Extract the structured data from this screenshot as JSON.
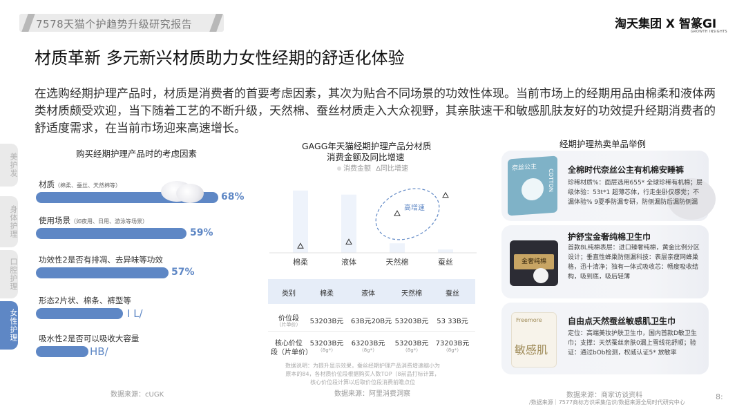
{
  "header": {
    "report_title": "7578天猫个护趋势升级研究报告",
    "brand_logo": "淘天集团 X 智篆GI",
    "brand_logo_sub": "GROWTH INSIGHTS"
  },
  "page": {
    "title": "材质革新 多元新兴材质助力女性经期的舒适化体验",
    "intro": "在选购经期护理产品时，材质是消费者的首要考虑因素，其次为贴合不同场景的功效性体现。当前市场上的经期用品由棉柔和液体两类材质颇受欢迎，当下随着工艺的不断升级，天然棉、蚕丝材质走入大众视野，其亲肤速干和敏感肌肤友好的功效提升经期消费者的舒适度需求，在当前市场迎来高速增长。",
    "page_number": "8:"
  },
  "side_tabs": [
    {
      "label": "美护发",
      "active": false
    },
    {
      "label": "身体护理",
      "active": false
    },
    {
      "label": "口腔护理",
      "active": false
    },
    {
      "label": "女性护理",
      "active": true
    }
  ],
  "colors": {
    "accent": "#5e87c5",
    "light_accent": "#e6edf8"
  },
  "factors": {
    "title": "购买经期护理产品时的考虑因素",
    "source": "数据来源：cUGK",
    "items": [
      {
        "label": "材质",
        "sub": "（棉柔、蚕丝、天然棉等）",
        "value": "68%",
        "fraction": 0.68
      },
      {
        "label": "使用场景",
        "sub": "（如夜用、日用、游泳等场景）",
        "value": "59%",
        "fraction": 0.59
      },
      {
        "label": "功效性2是否有排凋、去异味等功效",
        "sub": "",
        "value": "57%",
        "fraction": 0.57
      },
      {
        "label": "形态2片状、棉条、裤型等",
        "sub": "",
        "value": "I L/",
        "fraction": 0.29
      },
      {
        "label": "吸水性2是否可以吸收大容量",
        "sub": "",
        "value": "HB/",
        "fraction": 0.26
      }
    ]
  },
  "chart_data": {
    "type": "bar",
    "title": "GAGG年天猫经期护理产品分材质",
    "subtitle": "消费金额及同比增速",
    "legend": [
      "消费金额",
      "同比增速"
    ],
    "legend_symbol": "Δ",
    "categories": [
      "棉柔",
      "液体",
      "天然棉",
      "蚕丝"
    ],
    "series": [
      {
        "name": "消费金额",
        "values": [
          92,
          86,
          14,
          5
        ]
      },
      {
        "name": "同比增速",
        "values": [
          10,
          16,
          58,
          85
        ]
      }
    ],
    "ylim": [
      0,
      100
    ],
    "annotation": "高增速"
  },
  "price_table": {
    "headers": [
      "类别",
      "棉柔",
      "液体",
      "天然棉",
      "蚕丝"
    ],
    "rows": [
      {
        "label": "价位段",
        "label_sub": "（片单价）",
        "cells": [
          "53203B元",
          "63B元20B元",
          "53203B元",
          "53 33B元"
        ],
        "subs": [
          "",
          "",
          "",
          ""
        ]
      },
      {
        "label": "核心价位",
        "label2": "段（片单价）",
        "cells": [
          "53203B元",
          "63203B元",
          "53203B元",
          "73203B元"
        ],
        "subs": [
          "（8g*）",
          "（8g*）",
          "（8g*）",
          "（8g*）"
        ]
      }
    ],
    "note": "数据说明：为提升显示效果，蚕丝经期护理产品消费增速缩小为原本的84，各材质价位段根据购买人数TOP（8前品打标计算，核心价位段计算以后取价位段消费前瞻点位",
    "source": "数据来源：阿里消费洞察"
  },
  "products": {
    "title": "经期护理热卖单品举例",
    "items": [
      {
        "name": "全棉时代奈丝公主有机棉安睡裤",
        "desc": "珍稀材质%：面层选用655* 全球珍稀有机棉；层级体验：53t*1 超薄芯体，行走坐卧仅感觉；不漏体验% 9夏季防漏专研，防侧漏防后漏防侧漏",
        "pack_top": "奈丝公主",
        "pack_side": "COTTON"
      },
      {
        "name": "护舒宝金奢纯棉卫生巾",
        "desc": "首款8L纯棉表层：进口臻奢纯棉，黄金比例分区设计；垂直性蜂巢防侧漏科技：表层亲瘦网蜂巢格，迅十清净；独有一体式吸收芯：畅度吸收结构，吸到底，吸后轻薄",
        "pack_top": "金奢纯棉",
        "pack_side": ""
      },
      {
        "name": "自由点天然蚕丝敏感肌卫生巾",
        "desc": "定位：高端美妆护肤卫生巾，国内首款D敏卫生巾；支撑：天然蚕丝亲肤0漏上雪线花舒顺；验证：通过bOb检测，权威认证5* 放敏率",
        "pack_top": "Freemore",
        "pack_side": "敏感肌"
      }
    ],
    "source": "数据来源：商家访谈资料",
    "footer": "/数据来源｜7577商标方识采集信识/数据来源全局时代研究中心"
  }
}
